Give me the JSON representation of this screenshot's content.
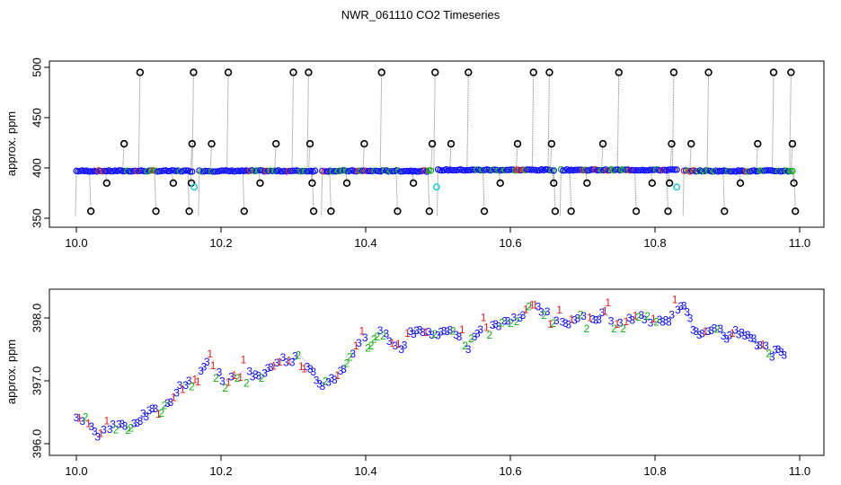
{
  "title": "NWR_061110  CO2 Timeseries",
  "chart_data": [
    {
      "type": "scatter",
      "panel": "top",
      "ylabel": "approx. ppm",
      "xlabel": "",
      "xlim": [
        10.0,
        11.0
      ],
      "ylim": [
        350,
        500
      ],
      "xticks": [
        "10.0",
        "10.2",
        "10.4",
        "10.6",
        "10.8",
        "11.0"
      ],
      "yticks": [
        "350",
        "400",
        "450",
        "500"
      ],
      "baseline_segments": [
        {
          "x_start": 10.0,
          "x_end": 10.16,
          "y": 397
        },
        {
          "x_start": 10.17,
          "x_end": 10.33,
          "y": 397
        },
        {
          "x_start": 10.34,
          "x_end": 10.49,
          "y": 397
        },
        {
          "x_start": 10.5,
          "x_end": 10.66,
          "y": 398
        },
        {
          "x_start": 10.67,
          "x_end": 10.83,
          "y": 398
        },
        {
          "x_start": 10.84,
          "x_end": 10.99,
          "y": 397
        }
      ],
      "flagged_points": [
        [
          10.02,
          357
        ],
        [
          10.042,
          385
        ],
        [
          10.066,
          424
        ],
        [
          10.088,
          495
        ],
        [
          10.11,
          357
        ],
        [
          10.134,
          385
        ],
        [
          10.156,
          357
        ],
        [
          10.159,
          385
        ],
        [
          10.16,
          424
        ],
        [
          10.162,
          495
        ],
        [
          10.187,
          424
        ],
        [
          10.21,
          495
        ],
        [
          10.232,
          357
        ],
        [
          10.254,
          385
        ],
        [
          10.276,
          424
        ],
        [
          10.3,
          495
        ],
        [
          10.321,
          495
        ],
        [
          10.323,
          424
        ],
        [
          10.326,
          385
        ],
        [
          10.328,
          357
        ],
        [
          10.352,
          357
        ],
        [
          10.374,
          385
        ],
        [
          10.398,
          424
        ],
        [
          10.422,
          495
        ],
        [
          10.444,
          357
        ],
        [
          10.466,
          385
        ],
        [
          10.488,
          357
        ],
        [
          10.492,
          424
        ],
        [
          10.496,
          495
        ],
        [
          10.518,
          424
        ],
        [
          10.542,
          495
        ],
        [
          10.564,
          357
        ],
        [
          10.586,
          385
        ],
        [
          10.61,
          424
        ],
        [
          10.632,
          495
        ],
        [
          10.654,
          495
        ],
        [
          10.657,
          424
        ],
        [
          10.66,
          385
        ],
        [
          10.662,
          357
        ],
        [
          10.684,
          357
        ],
        [
          10.706,
          385
        ],
        [
          10.728,
          424
        ],
        [
          10.75,
          495
        ],
        [
          10.774,
          357
        ],
        [
          10.796,
          385
        ],
        [
          10.818,
          357
        ],
        [
          10.82,
          385
        ],
        [
          10.823,
          424
        ],
        [
          10.826,
          495
        ],
        [
          10.85,
          424
        ],
        [
          10.874,
          495
        ],
        [
          10.896,
          357
        ],
        [
          10.918,
          385
        ],
        [
          10.942,
          424
        ],
        [
          10.964,
          495
        ],
        [
          10.988,
          495
        ],
        [
          10.99,
          424
        ],
        [
          10.992,
          385
        ],
        [
          10.994,
          357
        ]
      ],
      "cyan_points": [
        [
          10.163,
          381
        ],
        [
          10.498,
          381
        ],
        [
          10.83,
          381
        ]
      ]
    },
    {
      "type": "scatter",
      "panel": "bottom",
      "ylabel": "approx. ppm",
      "xlabel": "",
      "xlim": [
        10.0,
        11.0
      ],
      "ylim": [
        395.9,
        398.5
      ],
      "xticks": [
        "10.0",
        "10.2",
        "10.4",
        "10.6",
        "10.8",
        "11.0"
      ],
      "yticks": [
        "396.0",
        "397.0",
        "398.0"
      ],
      "marker_labels": [
        "1",
        "2",
        "3"
      ],
      "series": [
        {
          "name": "1",
          "color": "#e02020"
        },
        {
          "name": "2",
          "color": "#10b010"
        },
        {
          "name": "3",
          "color": "#1010ff"
        }
      ],
      "trend": [
        [
          10.0,
          396.45
        ],
        [
          10.01,
          396.4
        ],
        [
          10.02,
          396.3
        ],
        [
          10.03,
          396.1
        ],
        [
          10.04,
          396.2
        ],
        [
          10.05,
          396.25
        ],
        [
          10.06,
          396.3
        ],
        [
          10.07,
          396.35
        ],
        [
          10.08,
          396.35
        ],
        [
          10.09,
          396.4
        ],
        [
          10.1,
          396.5
        ],
        [
          10.11,
          396.5
        ],
        [
          10.12,
          396.55
        ],
        [
          10.13,
          396.7
        ],
        [
          10.14,
          396.85
        ],
        [
          10.15,
          396.95
        ],
        [
          10.16,
          397.05
        ],
        [
          10.17,
          397.1
        ],
        [
          10.18,
          397.25
        ],
        [
          10.19,
          397.2
        ],
        [
          10.2,
          397.05
        ],
        [
          10.21,
          396.98
        ],
        [
          10.22,
          397.05
        ],
        [
          10.23,
          397.15
        ],
        [
          10.24,
          397.1
        ],
        [
          10.25,
          397.1
        ],
        [
          10.26,
          397.1
        ],
        [
          10.27,
          397.2
        ],
        [
          10.28,
          397.3
        ],
        [
          10.29,
          397.35
        ],
        [
          10.3,
          397.35
        ],
        [
          10.31,
          397.4
        ],
        [
          10.32,
          397.25
        ],
        [
          10.33,
          397.05
        ],
        [
          10.34,
          396.9
        ],
        [
          10.35,
          397.0
        ],
        [
          10.36,
          397.1
        ],
        [
          10.37,
          397.25
        ],
        [
          10.38,
          397.4
        ],
        [
          10.39,
          397.55
        ],
        [
          10.4,
          397.65
        ],
        [
          10.41,
          397.7
        ],
        [
          10.42,
          397.75
        ],
        [
          10.43,
          397.7
        ],
        [
          10.44,
          397.6
        ],
        [
          10.45,
          397.55
        ],
        [
          10.46,
          397.7
        ],
        [
          10.47,
          397.85
        ],
        [
          10.48,
          397.8
        ],
        [
          10.49,
          397.7
        ],
        [
          10.5,
          397.7
        ],
        [
          10.51,
          397.75
        ],
        [
          10.52,
          397.8
        ],
        [
          10.53,
          397.75
        ],
        [
          10.54,
          397.5
        ],
        [
          10.55,
          397.7
        ],
        [
          10.56,
          397.8
        ],
        [
          10.57,
          397.85
        ],
        [
          10.58,
          397.85
        ],
        [
          10.59,
          397.9
        ],
        [
          10.6,
          397.95
        ],
        [
          10.61,
          398.0
        ],
        [
          10.62,
          398.1
        ],
        [
          10.63,
          398.2
        ],
        [
          10.64,
          398.15
        ],
        [
          10.65,
          398.1
        ],
        [
          10.66,
          398.0
        ],
        [
          10.67,
          397.95
        ],
        [
          10.68,
          397.95
        ],
        [
          10.69,
          398.0
        ],
        [
          10.7,
          398.05
        ],
        [
          10.71,
          398.05
        ],
        [
          10.72,
          398.0
        ],
        [
          10.73,
          398.05
        ],
        [
          10.74,
          398.0
        ],
        [
          10.75,
          397.95
        ],
        [
          10.76,
          398.0
        ],
        [
          10.77,
          398.0
        ],
        [
          10.78,
          398.05
        ],
        [
          10.79,
          398.0
        ],
        [
          10.8,
          397.95
        ],
        [
          10.81,
          397.95
        ],
        [
          10.82,
          398.0
        ],
        [
          10.83,
          398.05
        ],
        [
          10.84,
          398.2
        ],
        [
          10.85,
          397.9
        ],
        [
          10.86,
          397.75
        ],
        [
          10.87,
          397.8
        ],
        [
          10.88,
          397.85
        ],
        [
          10.89,
          397.8
        ],
        [
          10.9,
          397.65
        ],
        [
          10.91,
          397.75
        ],
        [
          10.92,
          397.75
        ],
        [
          10.93,
          397.7
        ],
        [
          10.94,
          397.6
        ],
        [
          10.95,
          397.55
        ],
        [
          10.96,
          397.4
        ],
        [
          10.97,
          397.55
        ],
        [
          10.98,
          397.4
        ]
      ]
    }
  ]
}
